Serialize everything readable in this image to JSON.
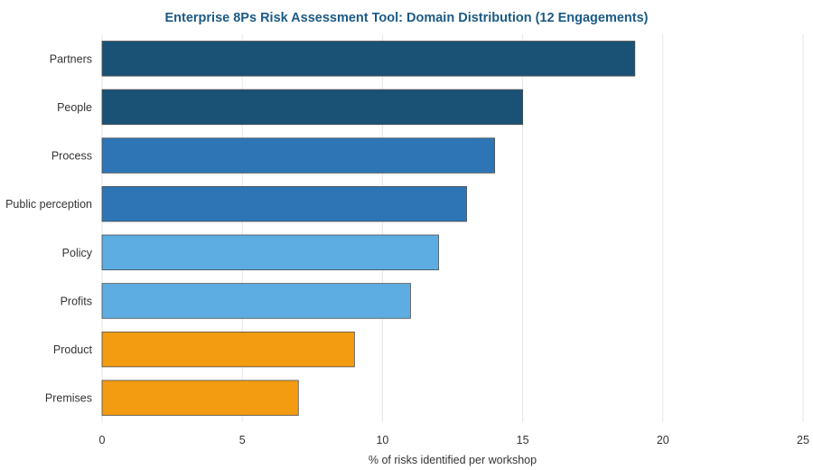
{
  "chart_data": {
    "type": "bar",
    "orientation": "horizontal",
    "title": "Enterprise 8Ps Risk Assessment Tool: Domain Distribution (12 Engagements)",
    "xlabel": "% of risks identified per workshop",
    "ylabel": "",
    "xlim": [
      0,
      25
    ],
    "xticks": [
      0,
      5,
      10,
      15,
      20,
      25
    ],
    "grid": "vertical",
    "legend": "none",
    "bars": [
      {
        "category": "Partners",
        "value": 19,
        "color": "#1a5276"
      },
      {
        "category": "People",
        "value": 15,
        "color": "#1a5276"
      },
      {
        "category": "Process",
        "value": 14,
        "color": "#2e75b6"
      },
      {
        "category": "Public perception",
        "value": 13,
        "color": "#2e75b6"
      },
      {
        "category": "Policy",
        "value": 12,
        "color": "#5dade2"
      },
      {
        "category": "Profits",
        "value": 11,
        "color": "#5dade2"
      },
      {
        "category": "Product",
        "value": 9,
        "color": "#f39c12"
      },
      {
        "category": "Premises",
        "value": 7,
        "color": "#f39c12"
      }
    ]
  }
}
